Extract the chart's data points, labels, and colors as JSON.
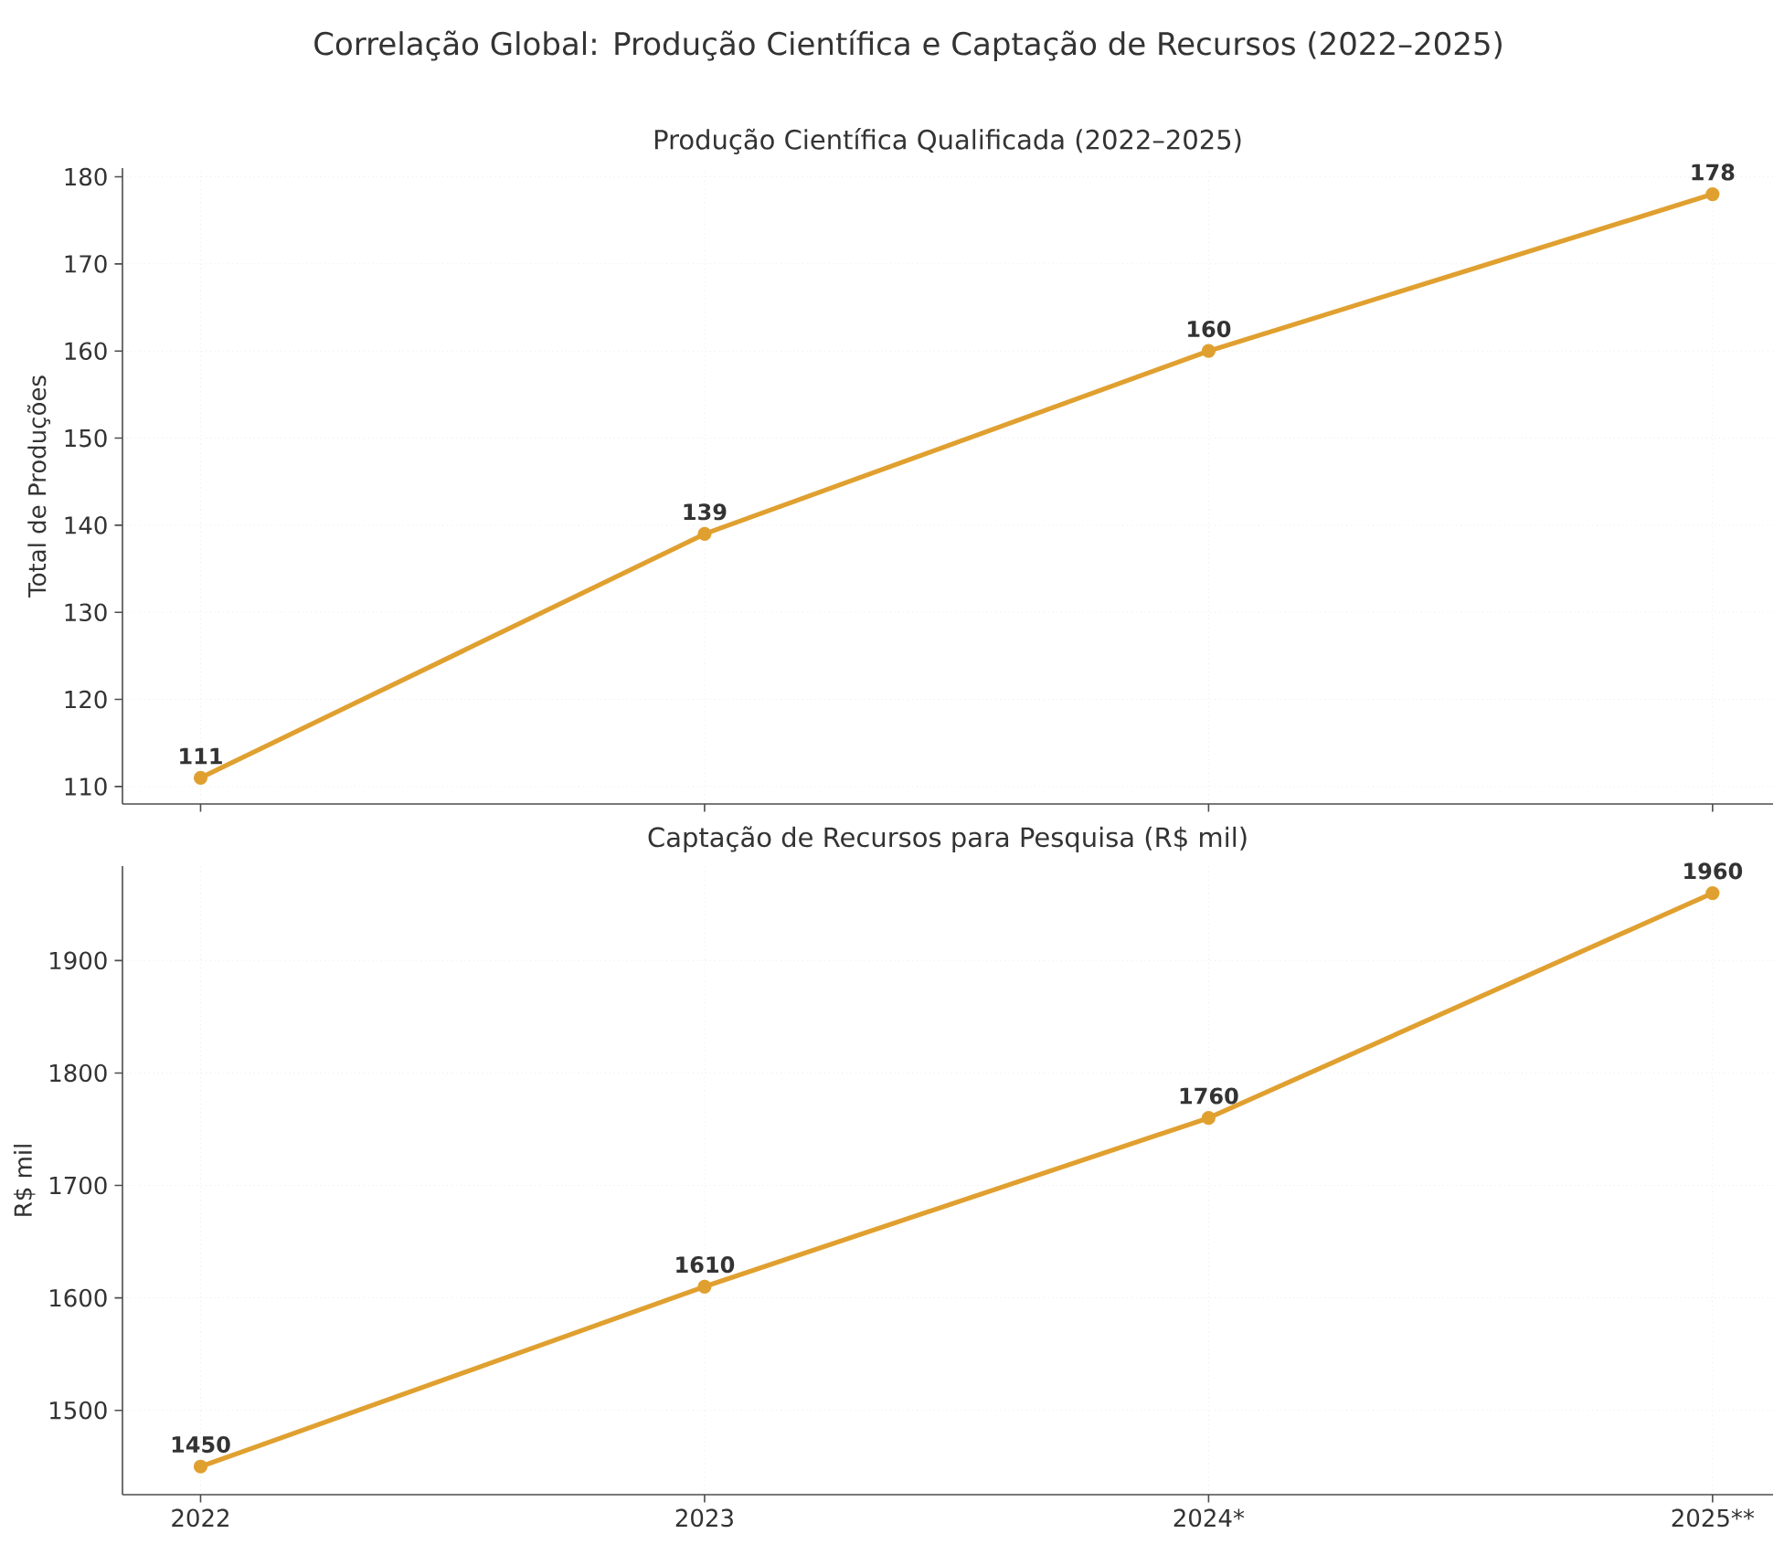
{
  "chart_data": [
    {
      "type": "line",
      "title": "Correlação Global: Produção Científica e Captação de Recursos (2022–2025)",
      "subtitle": "Produção Científica Qualificada (2022–2025)",
      "ylabel": "Total de Produções",
      "categories": [
        null,
        null,
        null,
        null
      ],
      "series": [
        {
          "color": "#e0a030",
          "values": [
            111,
            139,
            160,
            178
          ]
        }
      ],
      "ylim": [
        108,
        181
      ],
      "yticks": [
        110,
        120,
        130,
        140,
        150,
        160,
        170,
        180
      ],
      "grid": true,
      "marker": "circle",
      "data_labels": true,
      "tick_labels": "y"
    },
    {
      "type": "line",
      "title": "Captação de Recursos para Pesquisa (R$ mil)",
      "ylabel": "R$ mil",
      "categories": [
        "2022",
        "2023",
        "2024*",
        "2025**"
      ],
      "series": [
        {
          "color": "#e0a030",
          "values": [
            1450,
            1610,
            1760,
            1960
          ]
        }
      ],
      "ylim": [
        1425,
        1984
      ],
      "yticks": [
        1500,
        1600,
        1700,
        1800,
        1900
      ],
      "grid": true,
      "marker": "circle",
      "data_labels": true
    }
  ]
}
